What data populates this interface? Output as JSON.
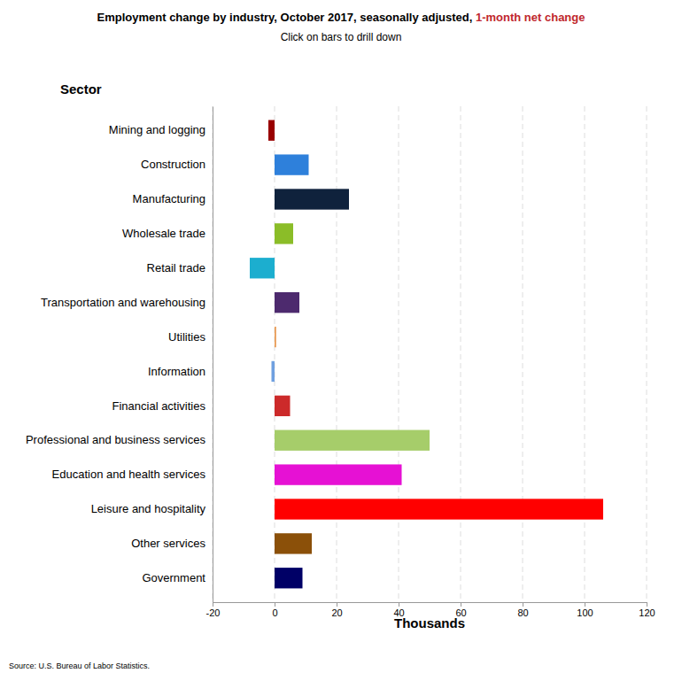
{
  "chart_data": {
    "type": "bar",
    "orientation": "horizontal",
    "title": [
      "Employment change by industry, October 2017, seasonally adjusted, ",
      "1-month net change"
    ],
    "subtitle": "Click on bars to drill down",
    "y_label": "Sector",
    "x_label": "Thousands",
    "annotations": [
      "Source: U.S. Bureau of Labor Statistics."
    ],
    "categories": [
      "Mining and logging",
      "Construction",
      "Manufacturing",
      "Wholesale trade",
      "Retail trade",
      "Transportation and warehousing",
      "Utilities",
      "Information",
      "Financial activities",
      "Professional and business services",
      "Education and health services",
      "Leisure and hospitality",
      "Other services",
      "Government"
    ],
    "values": [
      -2,
      11,
      24,
      6,
      -8,
      8,
      0.5,
      -1,
      5,
      50,
      41,
      106,
      12,
      9
    ],
    "colors": [
      "#990000",
      "#2e80db",
      "#0f223c",
      "#8bbd28",
      "#1caecf",
      "#4d2a6e",
      "#e89850",
      "#6fa0e0",
      "#cc2a2a",
      "#a6cd6a",
      "#e611d4",
      "#ff0000",
      "#8b5009",
      "#000066"
    ],
    "xlim": [
      -20,
      120
    ],
    "xticks": [
      -20,
      0,
      20,
      40,
      60,
      80,
      100,
      120
    ],
    "grid": true
  }
}
